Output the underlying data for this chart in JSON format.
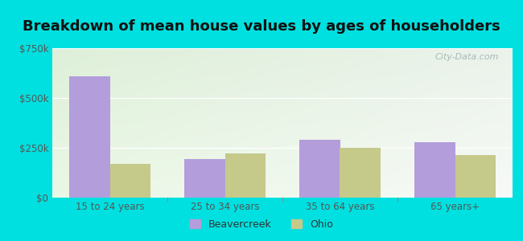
{
  "title": "Breakdown of mean house values by ages of householders",
  "categories": [
    "15 to 24 years",
    "25 to 34 years",
    "35 to 64 years",
    "65 years+"
  ],
  "beavercreek_values": [
    610000,
    195000,
    290000,
    278000
  ],
  "ohio_values": [
    168000,
    222000,
    248000,
    215000
  ],
  "beavercreek_color": "#b39ddb",
  "ohio_color": "#c5c98a",
  "ylim": [
    0,
    750000
  ],
  "yticks": [
    0,
    250000,
    500000,
    750000
  ],
  "ytick_labels": [
    "$0",
    "$250k",
    "$500k",
    "$750k"
  ],
  "bg_top_left": "#d4ecd4",
  "bg_top_right": "#e8f0e8",
  "bg_bottom": "#f5fff5",
  "outer_bg": "#00e0e0",
  "bar_width": 0.35,
  "legend_labels": [
    "Beavercreek",
    "Ohio"
  ],
  "title_fontsize": 13,
  "watermark": "City-Data.com"
}
